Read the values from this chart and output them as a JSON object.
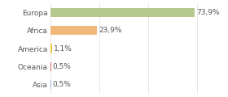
{
  "categories": [
    "Europa",
    "Africa",
    "America",
    "Oceania",
    "Asia"
  ],
  "values": [
    73.9,
    23.9,
    1.1,
    0.5,
    0.5
  ],
  "bar_colors": [
    "#b5c98e",
    "#f0b87a",
    "#e8c840",
    "#e06060",
    "#a0b8d8"
  ],
  "labels": [
    "73,9%",
    "23,9%",
    "1,1%",
    "0,5%",
    "0,5%"
  ],
  "xlim": [
    0,
    85
  ],
  "bar_height": 0.5,
  "background_color": "#ffffff",
  "text_color": "#555555",
  "label_fontsize": 6.5,
  "tick_fontsize": 6.5,
  "grid_xticks": [
    0,
    25,
    50,
    75
  ]
}
